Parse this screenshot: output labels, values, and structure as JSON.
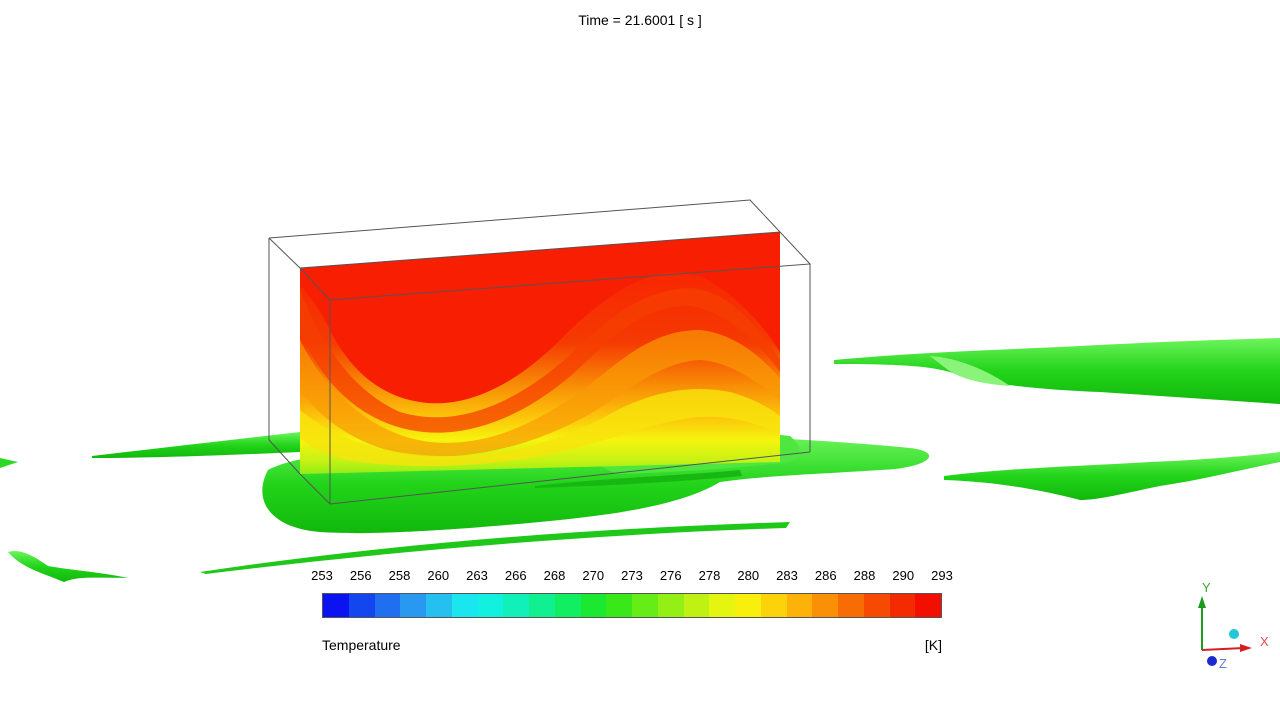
{
  "time_label": "Time = 21.6001 [ s ]",
  "legend": {
    "title": "Temperature",
    "unit": "[K]",
    "ticks": [
      "253",
      "256",
      "258",
      "260",
      "263",
      "266",
      "268",
      "270",
      "273",
      "276",
      "278",
      "280",
      "283",
      "286",
      "288",
      "290",
      "293"
    ],
    "colors": [
      "#0b14f0",
      "#1446f0",
      "#1f6ff0",
      "#2898f0",
      "#25bff0",
      "#1ae6f0",
      "#12f0e0",
      "#10f0b8",
      "#10f090",
      "#12ee62",
      "#1be830",
      "#38e818",
      "#66ec16",
      "#94f014",
      "#bff212",
      "#e4f610",
      "#f8f00c",
      "#fcd20a",
      "#fcb208",
      "#fa9006",
      "#f86c04",
      "#f64a02",
      "#f42a00",
      "#f20f00"
    ]
  },
  "axes": {
    "x": "X",
    "y": "Y",
    "z": "Z"
  },
  "colors": {
    "hot": "#f81e02",
    "iso": "#22d41a",
    "iso_light": "#5ef04e",
    "frame": "#555555"
  }
}
